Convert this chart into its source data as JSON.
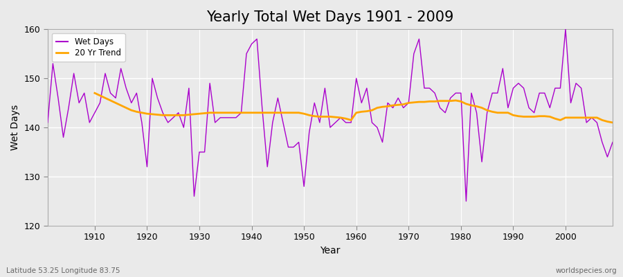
{
  "title": "Yearly Total Wet Days 1901 - 2009",
  "xlabel": "Year",
  "ylabel": "Wet Days",
  "years": [
    1901,
    1902,
    1903,
    1904,
    1905,
    1906,
    1907,
    1908,
    1909,
    1910,
    1911,
    1912,
    1913,
    1914,
    1915,
    1916,
    1917,
    1918,
    1919,
    1920,
    1921,
    1922,
    1923,
    1924,
    1925,
    1926,
    1927,
    1928,
    1929,
    1930,
    1931,
    1932,
    1933,
    1934,
    1935,
    1936,
    1937,
    1938,
    1939,
    1940,
    1941,
    1942,
    1943,
    1944,
    1945,
    1946,
    1947,
    1948,
    1949,
    1950,
    1951,
    1952,
    1953,
    1954,
    1955,
    1956,
    1957,
    1958,
    1959,
    1960,
    1961,
    1962,
    1963,
    1964,
    1965,
    1966,
    1967,
    1968,
    1969,
    1970,
    1971,
    1972,
    1973,
    1974,
    1975,
    1976,
    1977,
    1978,
    1979,
    1980,
    1981,
    1982,
    1983,
    1984,
    1985,
    1986,
    1987,
    1988,
    1989,
    1990,
    1991,
    1992,
    1993,
    1994,
    1995,
    1996,
    1997,
    1998,
    1999,
    2000,
    2001,
    2002,
    2003,
    2004,
    2005,
    2006,
    2007,
    2008,
    2009
  ],
  "wet_days": [
    141,
    153,
    146,
    138,
    144,
    151,
    145,
    147,
    141,
    143,
    145,
    151,
    147,
    146,
    152,
    148,
    145,
    147,
    141,
    132,
    150,
    146,
    143,
    141,
    142,
    143,
    140,
    148,
    126,
    135,
    135,
    149,
    141,
    142,
    142,
    142,
    142,
    143,
    155,
    157,
    158,
    144,
    132,
    141,
    146,
    141,
    136,
    136,
    137,
    128,
    139,
    145,
    141,
    148,
    140,
    141,
    142,
    141,
    141,
    150,
    145,
    148,
    141,
    140,
    137,
    145,
    144,
    146,
    144,
    145,
    155,
    158,
    148,
    148,
    147,
    144,
    143,
    146,
    147,
    147,
    125,
    147,
    143,
    133,
    143,
    147,
    147,
    152,
    144,
    148,
    149,
    148,
    144,
    143,
    147,
    147,
    144,
    148,
    148,
    160,
    145,
    149,
    148,
    141,
    142,
    141,
    137,
    134,
    137
  ],
  "trend_start_year": 1910,
  "trend_values": [
    147.0,
    146.5,
    146.0,
    145.5,
    145.0,
    144.5,
    144.0,
    143.5,
    143.2,
    143.0,
    142.8,
    142.7,
    142.6,
    142.5,
    142.5,
    142.5,
    142.5,
    142.5,
    142.6,
    142.7,
    142.8,
    142.9,
    143.0,
    143.0,
    143.0,
    143.0,
    143.0,
    143.0,
    143.0,
    143.0,
    143.0,
    143.0,
    143.0,
    143.0,
    143.0,
    143.0,
    143.0,
    143.0,
    143.0,
    143.0,
    142.8,
    142.5,
    142.3,
    142.2,
    142.2,
    142.2,
    142.1,
    142.0,
    141.8,
    141.5,
    143.0,
    143.2,
    143.3,
    143.5,
    144.0,
    144.2,
    144.3,
    144.5,
    144.6,
    144.7,
    145.0,
    145.1,
    145.2,
    145.2,
    145.3,
    145.3,
    145.4,
    145.4,
    145.4,
    145.5,
    145.3,
    144.8,
    144.5,
    144.3,
    144.0,
    143.5,
    143.2,
    143.0,
    143.0,
    143.0,
    142.5,
    142.3,
    142.2,
    142.2,
    142.2,
    142.3,
    142.3,
    142.2,
    141.8,
    141.5,
    142.0,
    142.0,
    142.0,
    142.0,
    142.0,
    142.0,
    142.0,
    141.5,
    141.2,
    141.0
  ],
  "wet_days_color": "#AA00CC",
  "trend_color": "#FFA500",
  "bg_color": "#EAEAEA",
  "plot_bg_color": "#EAEAEA",
  "ylim": [
    120,
    160
  ],
  "xlim": [
    1901,
    2009
  ],
  "yticks": [
    120,
    130,
    140,
    150,
    160
  ],
  "xticks": [
    1910,
    1920,
    1930,
    1940,
    1950,
    1960,
    1970,
    1980,
    1990,
    2000
  ],
  "title_fontsize": 15,
  "label_fontsize": 10,
  "tick_fontsize": 9,
  "footer_left": "Latitude 53.25 Longitude 83.75",
  "footer_right": "worldspecies.org",
  "legend_labels": [
    "Wet Days",
    "20 Yr Trend"
  ]
}
